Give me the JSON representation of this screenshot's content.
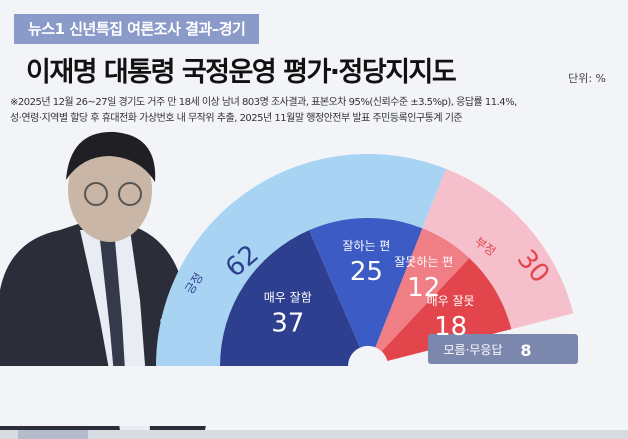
{
  "header": {
    "series_label": "뉴스1 신년특집 여론조사 결과–경기",
    "title": "이재명 대통령 국정운영 평가·정당지지도",
    "unit": "단위: %",
    "note_line1": "※2025년 12월 26~27일 경기도 거주 만 18세 이상 남녀 803명 조사결과, 표본오차 95%(신뢰수준 ±3.5%p), 응답률 11.4%,",
    "note_line2": "성·연령·지역별 할당 후 휴대전화 가상번호 내 무작위 추출, 2025년 11월말 행정안전부 발표 주민등록인구통계 기준"
  },
  "chart_data": {
    "type": "pie",
    "style": "semicircle-donut",
    "outer_ring": [
      {
        "label": "긍정",
        "value": 62,
        "color": "#a9d3f2"
      },
      {
        "label": "부정",
        "value": 30,
        "color": "#f5bfcb"
      }
    ],
    "inner_ring": [
      {
        "label": "매우 잘함",
        "value": 37,
        "color": "#2e3f8f"
      },
      {
        "label": "잘하는 편",
        "value": 25,
        "color": "#3d5bc4"
      },
      {
        "label": "잘못하는 편",
        "value": 12,
        "color": "#ef7e85"
      },
      {
        "label": "매우 잘못",
        "value": 18,
        "color": "#e3454d"
      }
    ],
    "remainder": {
      "label": "모름·무응답",
      "value": 8,
      "color": "#7b87ad"
    },
    "total": 100
  },
  "colors": {
    "background": "#f2f4f7",
    "positive_text": "#2e3f8f",
    "negative_text": "#e3454d",
    "header_bar": "#8a9bc9"
  }
}
